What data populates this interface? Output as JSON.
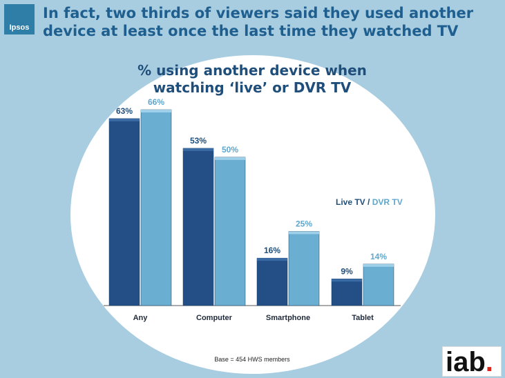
{
  "brand": {
    "name": "Ipsos"
  },
  "headline": "In fact, two thirds of viewers said they used another device at least once the last time they watched TV",
  "legend": {
    "live": "Live TV",
    "sep": " / ",
    "dvr": "DVR TV"
  },
  "base_note": "Base = 454 HWS members",
  "iab_logo": {
    "text": "iab",
    "dot": "."
  },
  "colors": {
    "live": "#234e86",
    "dvr": "#6aafd1",
    "background": "#a9cde0"
  },
  "chart_data": {
    "type": "bar",
    "title": "% using another device when watching ‘live’ or DVR TV",
    "categories": [
      "Any",
      "Computer",
      "Smartphone",
      "Tablet"
    ],
    "series": [
      {
        "name": "Live TV",
        "values": [
          63,
          53,
          16,
          9
        ],
        "labels": [
          "63%",
          "53%",
          "16%",
          "9%"
        ]
      },
      {
        "name": "DVR TV",
        "values": [
          66,
          50,
          25,
          14
        ],
        "labels": [
          "66%",
          "50%",
          "25%",
          "14%"
        ]
      }
    ],
    "ylim": [
      0,
      70
    ],
    "grid": false,
    "legend_position": "right"
  }
}
